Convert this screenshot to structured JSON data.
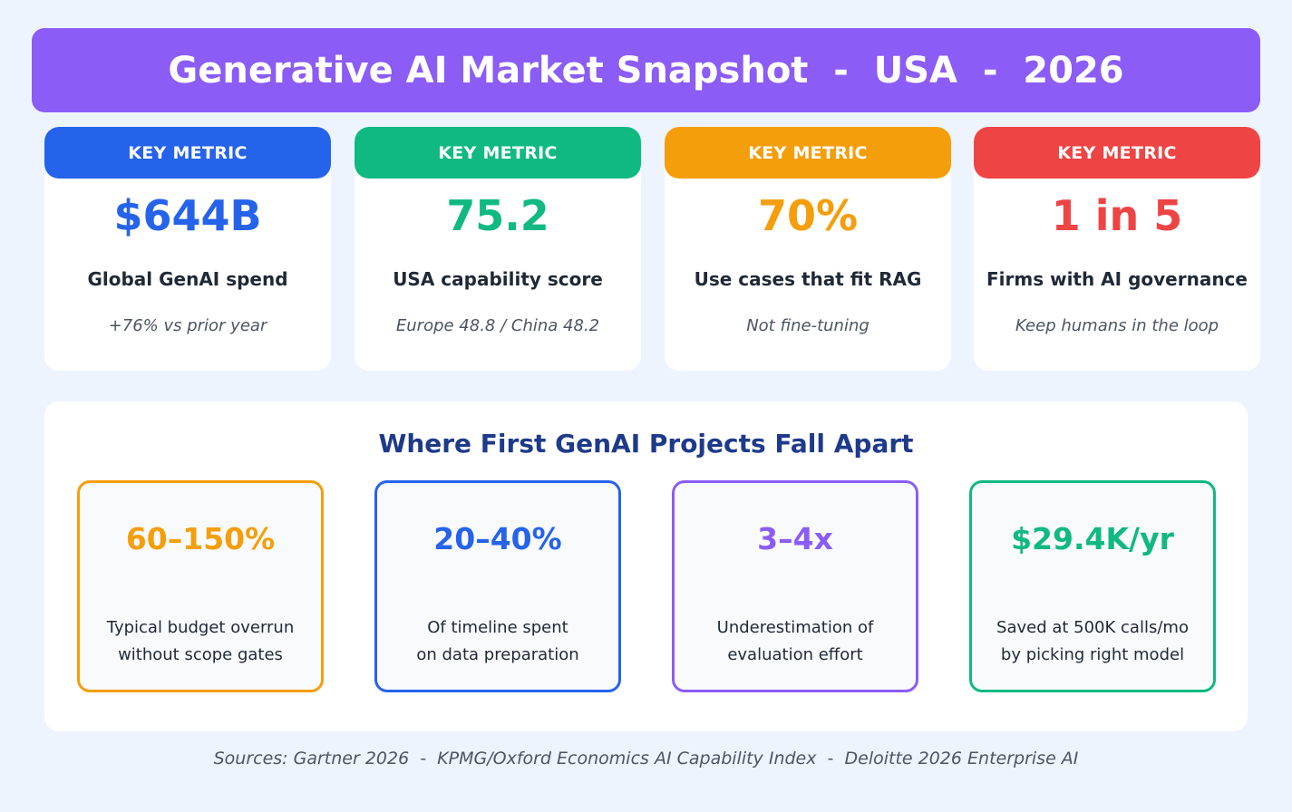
{
  "title": "Generative AI Market Snapshot  -  USA  -  2026",
  "metrics": [
    {
      "header": "KEY METRIC",
      "value": "$644B",
      "label": "Global GenAI spend",
      "note": "+76% vs prior year",
      "color": "#2563eb"
    },
    {
      "header": "KEY METRIC",
      "value": "75.2",
      "label": "USA capability score",
      "note": "Europe 48.8 / China 48.2",
      "color": "#10b981"
    },
    {
      "header": "KEY METRIC",
      "value": "70%",
      "label": "Use cases that fit RAG",
      "note": "Not fine-tuning",
      "color": "#f59e0b"
    },
    {
      "header": "KEY METRIC",
      "value": "1 in 5",
      "label": "Firms with AI governance",
      "note": "Keep humans in the loop",
      "color": "#ef4444"
    }
  ],
  "panel": {
    "title": "Where First GenAI Projects Fall Apart",
    "items": [
      {
        "value": "60–150%",
        "line1": "Typical budget overrun",
        "line2": "without scope gates",
        "color": "#f59e0b"
      },
      {
        "value": "20–40%",
        "line1": "Of timeline spent",
        "line2": "on data preparation",
        "color": "#2563eb"
      },
      {
        "value": "3–4x",
        "line1": "Underestimation of",
        "line2": "evaluation effort",
        "color": "#8b5cf6"
      },
      {
        "value": "$29.4K/yr",
        "line1": "Saved at 500K calls/mo",
        "line2": "by picking right model",
        "color": "#10b981"
      }
    ]
  },
  "sources": "Sources: Gartner 2026  -  KPMG/Oxford Economics AI Capability Index  -  Deloitte 2026 Enterprise AI"
}
